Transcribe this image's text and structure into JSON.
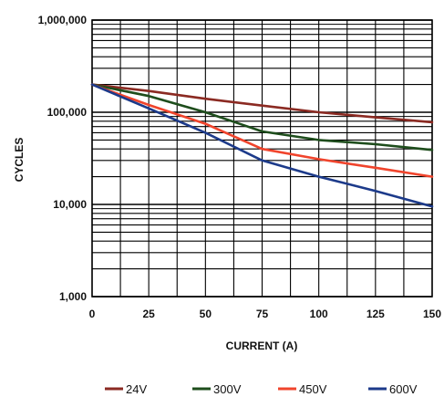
{
  "chart_data": {
    "type": "line",
    "title": "",
    "xlabel": "CURRENT (A)",
    "ylabel": "CYCLES",
    "xlim": [
      0,
      150
    ],
    "ylim": [
      1000,
      1000000
    ],
    "y_scale": "log",
    "grid": true,
    "legend_position": "bottom",
    "x_ticks": [
      0,
      25,
      50,
      75,
      100,
      125,
      150
    ],
    "x_tick_labels": [
      "0",
      "25",
      "50",
      "75",
      "100",
      "125",
      "150"
    ],
    "y_ticks": [
      1000,
      10000,
      100000,
      1000000
    ],
    "y_tick_labels": [
      "1,000",
      "10,000",
      "100,000",
      "1,000,000"
    ],
    "x": [
      0,
      25,
      50,
      75,
      100,
      125,
      150
    ],
    "series": [
      {
        "name": "24V",
        "color": "#8b2a22",
        "values": [
          200000,
          170000,
          140000,
          118000,
          100000,
          88000,
          78000
        ]
      },
      {
        "name": "300V",
        "color": "#1e4d1c",
        "values": [
          200000,
          150000,
          100000,
          62000,
          50000,
          45000,
          39000
        ]
      },
      {
        "name": "450V",
        "color": "#f0442c",
        "values": [
          200000,
          120000,
          75000,
          40000,
          31000,
          25000,
          20000
        ]
      },
      {
        "name": "600V",
        "color": "#1c3a8a",
        "values": [
          200000,
          110000,
          60000,
          30000,
          20000,
          14000,
          9500
        ]
      }
    ]
  }
}
